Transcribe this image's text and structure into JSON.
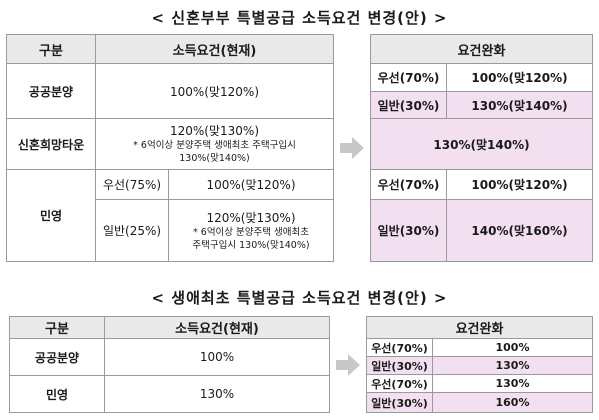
{
  "section1": {
    "title": "< 신혼부부 특별공급 소득요건 변경(안) >",
    "current": {
      "headers": [
        "구분",
        "소득요건(현재)"
      ],
      "public": {
        "label": "공공분양",
        "value": "100%(맞120%)"
      },
      "newlywed_town": {
        "label": "신혼희망타운",
        "line1": "120%(맞130%)",
        "note_a": "* 6억이상 분양주택 생애최초 주택구입시",
        "note_b": "130%(맞140%)"
      },
      "private": {
        "label": "민영",
        "priority_label": "우선(75%)",
        "priority_value": "100%(맞120%)",
        "general_label": "일반(25%)",
        "general_line1": "120%(맞130%)",
        "general_note_a": "* 6억이상 분양주택 생애최초",
        "general_note_b": "주택구입시 130%(맞140%)"
      }
    },
    "relaxed": {
      "header": "요건완화",
      "rows": [
        {
          "label": "우선(70%)",
          "value": "100%(맞120%)",
          "pink": false
        },
        {
          "label": "일반(30%)",
          "value": "130%(맞140%)",
          "pink": true
        },
        {
          "merged": "130%(맞140%)",
          "pink": true
        },
        {
          "label": "우선(70%)",
          "value": "100%(맞120%)",
          "pink": false
        },
        {
          "label": "일반(30%)",
          "value": "140%(맞160%)",
          "pink": true
        }
      ]
    }
  },
  "section2": {
    "title": "< 생애최초 특별공급 소득요건 변경(안) >",
    "current": {
      "headers": [
        "구분",
        "소득요건(현재)"
      ],
      "rows": [
        {
          "label": "공공분양",
          "value": "100%"
        },
        {
          "label": "민영",
          "value": "130%"
        }
      ]
    },
    "relaxed": {
      "header": "요건완화",
      "rows": [
        {
          "label": "우선(70%)",
          "value": "100%",
          "pink": false
        },
        {
          "label": "일반(30%)",
          "value": "130%",
          "pink": true
        },
        {
          "label": "우선(70%)",
          "value": "130%",
          "pink": false
        },
        {
          "label": "일반(30%)",
          "value": "160%",
          "pink": true
        }
      ]
    }
  },
  "colors": {
    "header_bg": "#e9e9e9",
    "highlight": "#f2dff0",
    "border": "#9a9a9a",
    "arrow": "#c8c8c8"
  },
  "icons": [
    "arrow-right-icon"
  ]
}
